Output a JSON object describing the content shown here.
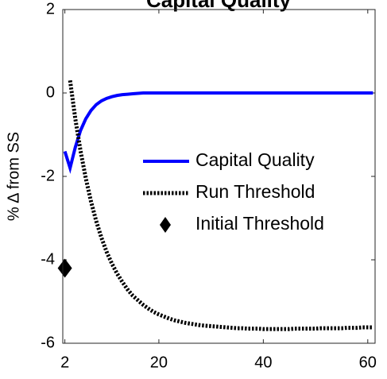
{
  "chart_data": {
    "type": "line",
    "title": "Capital Quality",
    "ylabel": "% Δ from SS",
    "x": [
      2,
      3,
      4,
      5,
      6,
      7,
      8,
      9,
      10,
      11,
      12,
      13,
      14,
      15,
      16,
      17,
      18,
      19,
      20,
      21,
      22,
      23,
      24,
      25,
      26,
      27,
      28,
      29,
      30,
      31,
      32,
      33,
      34,
      35,
      36,
      37,
      38,
      39,
      40,
      41,
      42,
      43,
      44,
      45,
      46,
      47,
      48,
      49,
      50,
      51,
      52,
      53,
      54,
      55,
      56,
      57,
      58,
      59,
      60,
      61
    ],
    "series": [
      {
        "name": "Capital Quality",
        "color": "#0000ff",
        "style": "solid",
        "values": [
          -1.4,
          -1.8,
          -1.3,
          -0.9,
          -0.62,
          -0.42,
          -0.28,
          -0.19,
          -0.13,
          -0.09,
          -0.06,
          -0.04,
          -0.03,
          -0.02,
          -0.01,
          0,
          0,
          0,
          0,
          0,
          0,
          0,
          0,
          0,
          0,
          0,
          0,
          0,
          0,
          0,
          0,
          0,
          0,
          0,
          0,
          0,
          0,
          0,
          0,
          0,
          0,
          0,
          0,
          0,
          0,
          0,
          0,
          0,
          0,
          0,
          0,
          0,
          0,
          0,
          0,
          0,
          0,
          0,
          0,
          0
        ]
      },
      {
        "name": "Run Threshold",
        "color": "#000000",
        "style": "dotted",
        "values": [
          null,
          0.3,
          -0.62,
          -1.39,
          -2.04,
          -2.6,
          -3.07,
          -3.47,
          -3.81,
          -4.09,
          -4.33,
          -4.53,
          -4.71,
          -4.86,
          -4.97,
          -5.08,
          -5.17,
          -5.25,
          -5.31,
          -5.36,
          -5.41,
          -5.45,
          -5.48,
          -5.51,
          -5.53,
          -5.55,
          -5.57,
          -5.58,
          -5.59,
          -5.6,
          -5.61,
          -5.62,
          -5.63,
          -5.64,
          -5.64,
          -5.65,
          -5.65,
          -5.65,
          -5.66,
          -5.66,
          -5.66,
          -5.66,
          -5.66,
          -5.66,
          -5.65,
          -5.65,
          -5.65,
          -5.65,
          -5.65,
          -5.64,
          -5.64,
          -5.64,
          -5.64,
          -5.64,
          -5.63,
          -5.63,
          -5.63,
          -5.62,
          -5.62,
          -5.62
        ]
      },
      {
        "name": "Initial Threshold",
        "color": "#000000",
        "style": "diamond",
        "x": [
          2
        ],
        "values": [
          -4.2
        ]
      }
    ],
    "xlim": [
      1.6,
      61.4
    ],
    "xticks": [
      2,
      20,
      40,
      60
    ],
    "ylim": [
      -6,
      2
    ],
    "yticks": [
      -6,
      -4,
      -2,
      0,
      2
    ]
  }
}
